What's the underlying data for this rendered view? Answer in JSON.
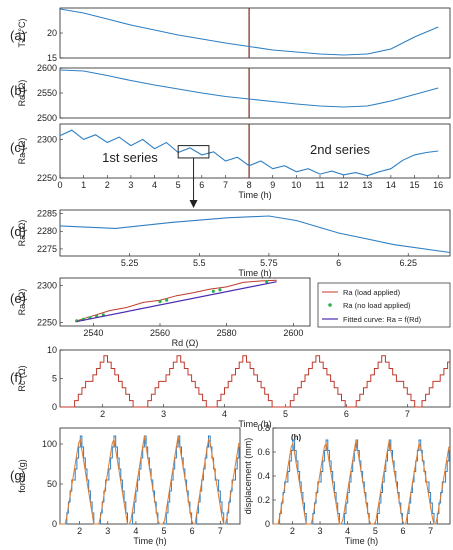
{
  "panel_labels": {
    "a": "(a)",
    "b": "(b)",
    "c": "(c)",
    "d": "(d)",
    "e": "(e)",
    "f": "(f)",
    "g": "(g)",
    "h": "(h)"
  },
  "colors": {
    "series": "#2f7fc2",
    "marker": "#7a2a10",
    "red": "#c0392b",
    "green": "#2bb34a",
    "purple": "#4b2bb0",
    "force_fit": "#e07a2b",
    "axis": "#222222",
    "grid": "#cccccc"
  },
  "chart_data": [
    {
      "panel": "a",
      "type": "line",
      "ylabel": "T2 (°C)",
      "xlabel": "",
      "xlim": [
        0,
        16.5
      ],
      "ylim": [
        15,
        25
      ],
      "xticks": [],
      "yticks": [
        15,
        20
      ],
      "x": [
        0,
        1,
        2,
        3,
        4,
        5,
        6,
        7,
        8,
        9,
        10,
        11,
        12,
        13,
        14,
        15,
        16
      ],
      "y": [
        24.8,
        24.0,
        22.8,
        21.6,
        20.6,
        19.6,
        18.8,
        18.0,
        17.3,
        16.6,
        16.2,
        15.8,
        15.6,
        15.8,
        16.8,
        19.2,
        21.2
      ],
      "vline_x": 8
    },
    {
      "panel": "b",
      "type": "line",
      "ylabel": "Rd (Ω)",
      "xlabel": "",
      "xlim": [
        0,
        16.5
      ],
      "ylim": [
        2500,
        2600
      ],
      "xticks": [],
      "yticks": [
        2500,
        2550,
        2600
      ],
      "x": [
        0,
        1,
        2,
        3,
        4,
        5,
        6,
        7,
        8,
        9,
        10,
        11,
        12,
        13,
        14,
        15,
        16
      ],
      "y": [
        2596,
        2594,
        2585,
        2575,
        2566,
        2558,
        2550,
        2543,
        2538,
        2533,
        2528,
        2524,
        2522,
        2524,
        2534,
        2547,
        2560
      ],
      "vline_x": 8
    },
    {
      "panel": "c",
      "type": "line",
      "ylabel": "Ra (Ω)",
      "xlabel": "Time (h)",
      "xlim": [
        0,
        16.5
      ],
      "ylim": [
        2250,
        2320
      ],
      "xticks": [
        0,
        1,
        2,
        3,
        4,
        5,
        6,
        7,
        8,
        9,
        10,
        11,
        12,
        13,
        14,
        15,
        16
      ],
      "yticks": [
        2250,
        2300
      ],
      "x": [
        0,
        0.5,
        1,
        1.5,
        2,
        2.5,
        3,
        3.5,
        4,
        4.5,
        5,
        5.5,
        6,
        6.5,
        7,
        7.5,
        8,
        8.5,
        9,
        9.5,
        10,
        10.5,
        11,
        11.5,
        12,
        12.5,
        13,
        13.5,
        14,
        14.5,
        15,
        15.5,
        16
      ],
      "y": [
        2305,
        2312,
        2300,
        2306,
        2296,
        2303,
        2292,
        2300,
        2288,
        2296,
        2283,
        2289,
        2280,
        2284,
        2272,
        2277,
        2266,
        2272,
        2262,
        2266,
        2258,
        2262,
        2255,
        2259,
        2254,
        2257,
        2253,
        2258,
        2262,
        2273,
        2280,
        2283,
        2285
      ],
      "vline_x": 8,
      "annotations": [
        "1st series",
        "2nd series"
      ],
      "zoom_box": [
        5.0,
        6.3,
        2276,
        2292
      ]
    },
    {
      "panel": "d",
      "type": "line",
      "ylabel": "Ra (Ω)",
      "xlabel": "Time (h)",
      "xlim": [
        5.0,
        6.4
      ],
      "ylim": [
        2273,
        2286
      ],
      "xticks": [
        5.25,
        5.5,
        5.75,
        6,
        6.25
      ],
      "yticks": [
        2275,
        2280,
        2285
      ],
      "x": [
        5.0,
        5.2,
        5.4,
        5.6,
        5.75,
        5.85,
        6.0,
        6.2,
        6.4
      ],
      "y": [
        2281.5,
        2280.8,
        2282.5,
        2283.8,
        2284.3,
        2283.0,
        2279.5,
        2276.2,
        2274.0
      ]
    },
    {
      "panel": "e",
      "type": "scatter",
      "ylabel": "Ra (Ω)",
      "xlabel": "Rd (Ω)",
      "xlim": [
        2530,
        2605
      ],
      "ylim": [
        2245,
        2310
      ],
      "xticks": [
        2540,
        2560,
        2580,
        2600
      ],
      "yticks": [
        2250,
        2300
      ],
      "series": [
        {
          "name": "Ra (load applied)",
          "x": [
            2535,
            2540,
            2545,
            2550,
            2555,
            2560,
            2565,
            2570,
            2575,
            2580,
            2585,
            2590,
            2595
          ],
          "y": [
            2252,
            2259,
            2266,
            2270,
            2277,
            2280,
            2286,
            2290,
            2295,
            2298,
            2304,
            2306,
            2307
          ]
        },
        {
          "name": "Ra (no load applied)",
          "x": [
            2535,
            2537,
            2539,
            2541,
            2543,
            2560,
            2562,
            2576,
            2578,
            2592
          ],
          "y": [
            2252,
            2254,
            2256,
            2258,
            2260,
            2278,
            2280,
            2292,
            2294,
            2305
          ]
        }
      ],
      "fit": {
        "name": "Fitted curve: Ra = f(Rd)",
        "x": [
          2535,
          2595
        ],
        "y": [
          2251,
          2305
        ]
      },
      "legend_position": "right"
    },
    {
      "panel": "f",
      "type": "line",
      "ylabel": "Rc (Ω)",
      "xlabel": "Time (h)",
      "xlim": [
        1.3,
        7.7
      ],
      "ylim": [
        0,
        10
      ],
      "xticks": [
        2,
        3,
        4,
        5,
        6,
        7
      ],
      "yticks": [
        0,
        5,
        10
      ],
      "peaks_x": [
        2,
        3.2,
        4.3,
        5.5,
        6.6,
        7.7
      ],
      "peak_value": 9
    },
    {
      "panel": "g",
      "type": "line",
      "ylabel": "force (g)",
      "xlabel": "Time (h)",
      "xlim": [
        1.3,
        7.7
      ],
      "ylim": [
        0,
        120
      ],
      "xticks": [
        2,
        3,
        4,
        5,
        6,
        7
      ],
      "yticks": [
        0,
        50,
        100
      ],
      "peaks_x": [
        2,
        3.2,
        4.3,
        5.5,
        6.6,
        7.7
      ],
      "peak_value": 110
    },
    {
      "panel": "h",
      "type": "line",
      "ylabel": "displacement (mm)",
      "xlabel": "Time (h)",
      "xlim": [
        1.3,
        7.7
      ],
      "ylim": [
        0,
        0.8
      ],
      "xticks": [
        2,
        3,
        4,
        5,
        6,
        7
      ],
      "yticks": [
        0,
        0.2,
        0.4,
        0.6,
        0.8
      ],
      "peaks_x": [
        2,
        3.2,
        4.3,
        5.5,
        6.6,
        7.7
      ],
      "peak_value": 0.7
    }
  ]
}
